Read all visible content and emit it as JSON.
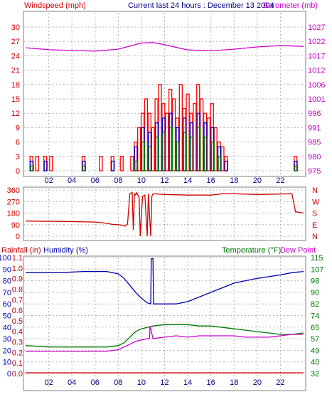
{
  "header": {
    "left_label": "Windspeed (mph)",
    "title": "Current last 24 hours : December 13 2004",
    "right_label": "Barometer (mb)"
  },
  "colors": {
    "frame": "#7f7f7f",
    "grid": "#b0b0b0",
    "windspeed": "#ff0000",
    "gust": "#ff0000",
    "average": "#0000cc",
    "low": "#008000",
    "barometer": "#cc00cc",
    "direction": "#cc0000",
    "humidity": "#0000aa",
    "temperature": "#007700",
    "dewpoint": "#cc00cc",
    "rainfall": "#cc0000"
  },
  "x_ticks": [
    "02",
    "04",
    "06",
    "08",
    "10",
    "12",
    "14",
    "16",
    "18",
    "20",
    "22"
  ],
  "chart_data": [
    {
      "type": "bar",
      "title": "Current last 24 hours : December 13 2004",
      "ylabel": "Windspeed (mph)",
      "ylabel_right": "Barometer (mb)",
      "y_ticks": [
        "0",
        "3",
        "6",
        "9",
        "12",
        "15",
        "18",
        "21",
        "24",
        "27",
        "30"
      ],
      "ylim": [
        0,
        30
      ],
      "y2_ticks": [
        "975",
        "980",
        "985",
        "991",
        "996",
        "1001",
        "1006",
        "1012",
        "1017",
        "1022",
        "1027"
      ],
      "y2lim": [
        975,
        1027
      ],
      "x_range_hours": [
        0,
        24
      ],
      "series": [
        {
          "name": "Windspeed",
          "x": [
            0.5,
            1.0,
            1.7,
            2.2,
            5.0,
            6.5,
            7.5,
            8.3,
            9.2,
            9.5,
            9.8,
            10.1,
            10.4,
            10.7,
            11.0,
            11.3,
            11.6,
            11.9,
            12.2,
            12.5,
            12.8,
            13.1,
            13.4,
            13.7,
            14.0,
            14.3,
            14.6,
            14.9,
            15.2,
            15.5,
            15.8,
            16.1,
            16.4,
            16.7,
            17.0,
            17.3,
            23.3
          ],
          "values": [
            3,
            3,
            3,
            3,
            3,
            3,
            3,
            3,
            3,
            6,
            9,
            12,
            15,
            12,
            9,
            15,
            18,
            14,
            12,
            17,
            15,
            11,
            18,
            13,
            16,
            12,
            14,
            18,
            15,
            12,
            11,
            14,
            9,
            6,
            5,
            3,
            3
          ]
        },
        {
          "name": "Average",
          "x": [
            0.5,
            1.7,
            5.0,
            7.5,
            9.5,
            10.1,
            10.7,
            11.3,
            11.9,
            12.5,
            13.1,
            13.7,
            14.3,
            14.9,
            15.5,
            16.1,
            16.7,
            17.3,
            23.3
          ],
          "values": [
            2,
            2,
            2,
            2,
            5,
            9,
            8,
            10,
            11,
            12,
            9,
            11,
            10,
            12,
            10,
            9,
            5,
            2,
            2
          ]
        },
        {
          "name": "Low",
          "x": [
            0.5,
            5.0,
            9.5,
            10.1,
            10.7,
            11.3,
            11.9,
            12.5,
            13.1,
            13.7,
            14.3,
            14.9,
            15.5,
            16.1,
            16.7,
            23.3
          ],
          "values": [
            1,
            1,
            2,
            6,
            5,
            7,
            8,
            9,
            6,
            8,
            7,
            9,
            7,
            6,
            3,
            1
          ]
        }
      ],
      "barometer": {
        "x": [
          0,
          2,
          4,
          6,
          8,
          10,
          11,
          12,
          14,
          16,
          18,
          20,
          22,
          24
        ],
        "values": [
          1019.5,
          1018.8,
          1018.5,
          1018.3,
          1019,
          1021.2,
          1021.4,
          1020.6,
          1018.7,
          1018.4,
          1019,
          1019.8,
          1020.3,
          1020
        ]
      }
    },
    {
      "type": "line",
      "ylabel_right": "N W S E N",
      "right_labels": [
        "N",
        "W",
        "S",
        "E",
        "N"
      ],
      "y_ticks": [
        "0",
        "90",
        "180",
        "270",
        "360"
      ],
      "ylim": [
        0,
        360
      ],
      "series": [
        {
          "name": "Wind Direction",
          "x": [
            0,
            3,
            6,
            7.0,
            7.5,
            8.0,
            8.4,
            8.6,
            8.8,
            9.0,
            9.2,
            9.3,
            9.4,
            9.5,
            9.6,
            9.8,
            9.9,
            10.1,
            10.3,
            10.5,
            10.6,
            10.8,
            10.9,
            11,
            12,
            14,
            16,
            17,
            18,
            20,
            23,
            23.3,
            24
          ],
          "values": [
            118,
            115,
            110,
            100,
            92,
            90,
            85,
            78,
            95,
            330,
            340,
            50,
            330,
            320,
            340,
            300,
            0,
            310,
            320,
            0,
            330,
            0,
            310,
            330,
            325,
            320,
            320,
            330,
            330,
            325,
            330,
            190,
            180
          ]
        }
      ]
    },
    {
      "type": "line",
      "ylabel": "Rainfall (in)",
      "ylabel2": "Humidity (%)",
      "ylabel_right": "Temperature (°F)",
      "ylabel_right2": "Dew Point",
      "y_ticks_humidity": [
        "0",
        "10",
        "20",
        "30",
        "40",
        "50",
        "60",
        "70",
        "80",
        "90",
        "100"
      ],
      "y_ticks_rain": [
        "0.0",
        "0.1",
        "0.2",
        "0.3",
        "0.4",
        "0.5",
        "0.6",
        "0.7",
        "0.8",
        "0.9",
        "1.0",
        "1.1"
      ],
      "y_ticks_temp": [
        "32",
        "40",
        "49",
        "57",
        "65",
        "74",
        "82",
        "90",
        "98",
        "107",
        "115"
      ],
      "ylim_temp": [
        32,
        115
      ],
      "series": [
        {
          "name": "Humidity",
          "x": [
            0,
            1,
            3,
            5,
            7,
            8,
            8.5,
            9,
            9.5,
            10,
            10.5,
            10.8,
            10.85,
            11.0,
            11.05,
            11.5,
            12,
            13,
            14,
            15,
            16,
            18,
            20,
            22,
            23,
            24
          ],
          "values": [
            87,
            87,
            87,
            88,
            88,
            86,
            82,
            76,
            70,
            65,
            61,
            60,
            99,
            99,
            60,
            60,
            60,
            60,
            62,
            66,
            70,
            78,
            82,
            85,
            87,
            88
          ]
        },
        {
          "name": "Temperature (°F)",
          "x": [
            0,
            2,
            4,
            6,
            7,
            8,
            8.5,
            9,
            9.5,
            10,
            11,
            12,
            13,
            14,
            15,
            16,
            17,
            18,
            19,
            20,
            21,
            22,
            23,
            24
          ],
          "values": [
            52,
            51,
            51,
            51,
            51,
            52,
            54,
            58,
            62,
            64,
            66,
            67,
            67,
            67,
            66,
            66,
            65,
            64,
            63,
            62,
            61,
            60,
            60,
            61
          ]
        },
        {
          "name": "Dew Point",
          "x": [
            0,
            2,
            4,
            6,
            7,
            8,
            8.5,
            9,
            9.5,
            10,
            10.6,
            10.7,
            10.75,
            11,
            12,
            13,
            14,
            15,
            16,
            17,
            18,
            19,
            20,
            21,
            22,
            23,
            24
          ],
          "values": [
            48,
            48,
            48,
            48,
            48,
            49,
            51,
            53,
            55,
            56,
            57,
            57,
            66,
            57,
            58,
            59,
            58,
            59,
            59,
            59,
            59,
            58,
            58,
            58,
            59,
            60,
            60
          ]
        },
        {
          "name": "Rainfall (in)",
          "x": [
            0,
            24
          ],
          "values": [
            0,
            0
          ]
        }
      ]
    }
  ]
}
